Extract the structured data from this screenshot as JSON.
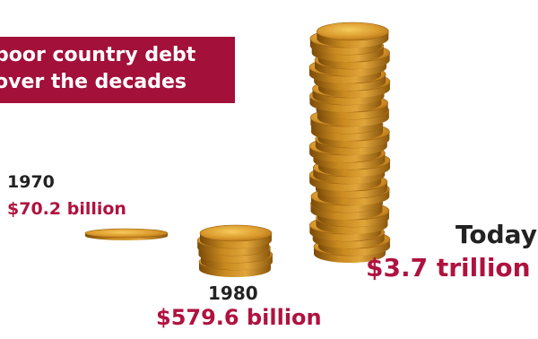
{
  "title": {
    "line1": "poor country debt",
    "line2": "over the decades"
  },
  "colors": {
    "title_background": "#a3103a",
    "title_text": "#ffffff",
    "year_text": "#222222",
    "amount_text": "#b0123f",
    "coin_gold": "#c98a1f",
    "coin_highlight": "#f0c04a",
    "coin_shadow": "#7a4a08"
  },
  "chart_data": {
    "type": "bar",
    "categories": [
      "1970",
      "1980",
      "Today"
    ],
    "values": [
      70.2,
      579.6,
      3700
    ],
    "value_labels": [
      "$70.2 billion",
      "$579.6 billion",
      "$3.7 trillion"
    ],
    "unit": "billion USD",
    "title": "poor country debt over the decades",
    "representation": "stacks of gold coins"
  }
}
